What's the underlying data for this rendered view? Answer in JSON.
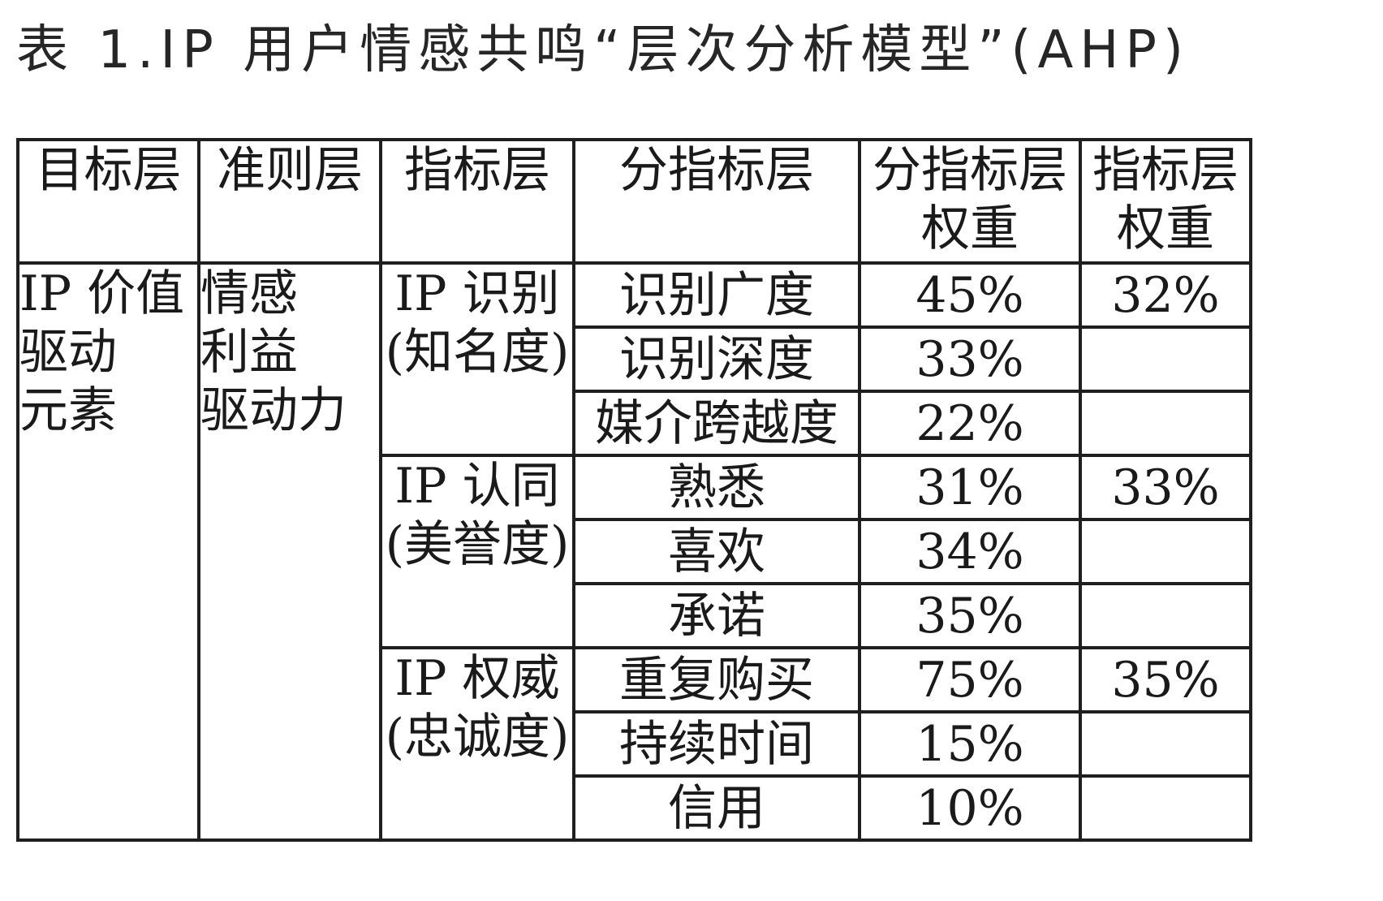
{
  "caption": "表 1.IP 用户情感共鸣“层次分析模型”(AHP)",
  "headers": {
    "goal": "目标层",
    "criterion": "准则层",
    "indicator": "指标层",
    "sub_indicator": "分指标层",
    "sub_weight_line1": "分指标层",
    "sub_weight_line2": "权重",
    "ind_weight_line1": "指标层",
    "ind_weight_line2": "权重"
  },
  "goal": {
    "line1": "IP 价值",
    "line2": "驱动",
    "line3": "元素"
  },
  "criterion": {
    "line1": "情感",
    "line2": "利益",
    "line3": "驱动力"
  },
  "indicators": [
    {
      "name_line1": "IP 识别",
      "name_line2": "(知名度)",
      "weight": "32%",
      "subs": [
        {
          "name": "识别广度",
          "weight": "45%"
        },
        {
          "name": "识别深度",
          "weight": "33%"
        },
        {
          "name": "媒介跨越度",
          "weight": "22%"
        }
      ]
    },
    {
      "name_line1": "IP 认同",
      "name_line2": "(美誉度)",
      "weight": "33%",
      "subs": [
        {
          "name": "熟悉",
          "weight": "31%"
        },
        {
          "name": "喜欢",
          "weight": "34%"
        },
        {
          "name": "承诺",
          "weight": "35%"
        }
      ]
    },
    {
      "name_line1": "IP 权威",
      "name_line2": "(忠诚度)",
      "weight": "35%",
      "subs": [
        {
          "name": "重复购买",
          "weight": "75%"
        },
        {
          "name": "持续时间",
          "weight": "15%"
        },
        {
          "name": "信用",
          "weight": "10%"
        }
      ]
    }
  ]
}
